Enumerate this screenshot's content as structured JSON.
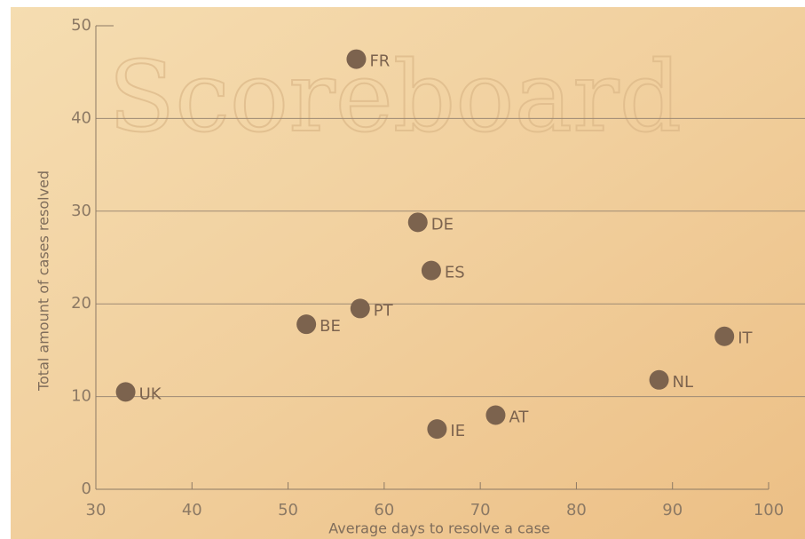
{
  "chart_data": {
    "type": "scatter",
    "background_text": "Scoreboard",
    "xlabel": "Average days to resolve a case",
    "ylabel": "Total amount of cases resolved",
    "x": [
      57.1,
      63.5,
      64.9,
      57.5,
      51.9,
      33.1,
      65.5,
      71.6,
      88.6,
      95.4
    ],
    "values": [
      46.4,
      28.8,
      23.6,
      19.5,
      17.8,
      10.5,
      6.5,
      8.0,
      11.8,
      16.5
    ],
    "labels": [
      "FR",
      "DE",
      "ES",
      "PT",
      "BE",
      "UK",
      "IE",
      "AT",
      "NL",
      "IT"
    ],
    "color": "#7c634e",
    "xlim": [
      30,
      100
    ],
    "xticks": [
      30,
      40,
      50,
      60,
      70,
      80,
      90,
      100
    ],
    "ylim": [
      0,
      50
    ],
    "yticks": [
      0,
      10,
      20,
      30,
      40,
      50
    ],
    "grid": true
  }
}
